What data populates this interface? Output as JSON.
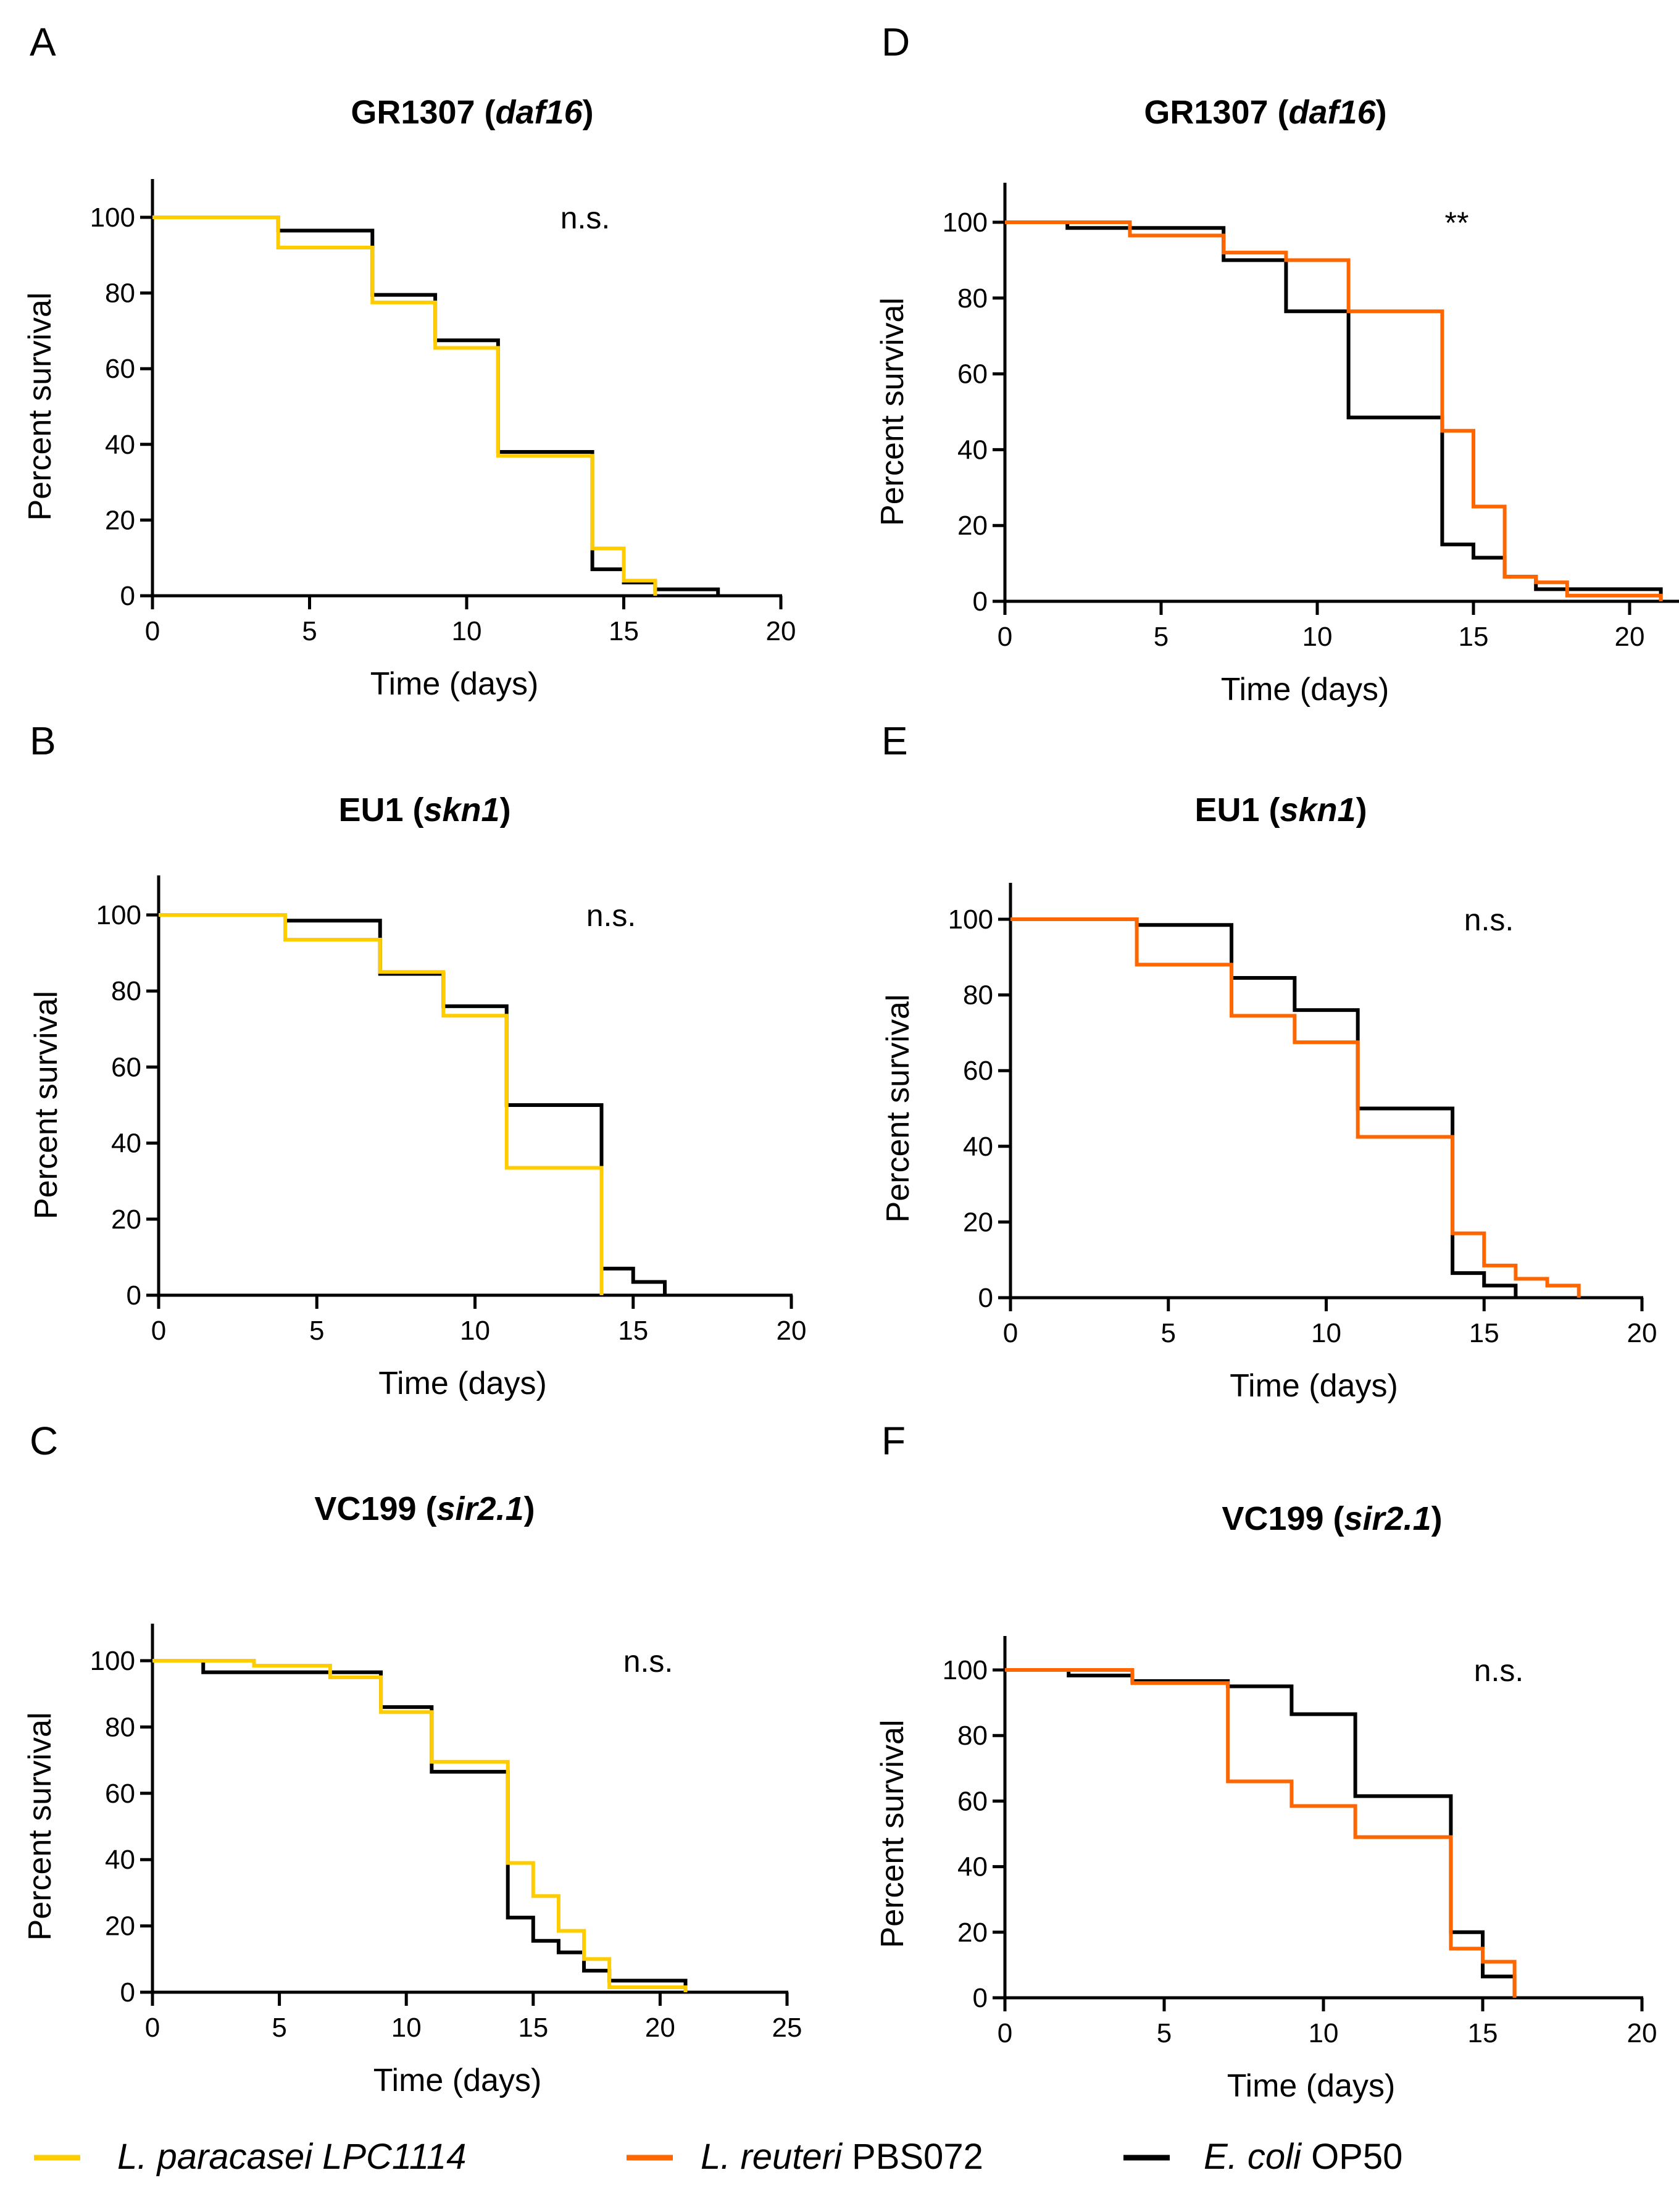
{
  "figure": {
    "legend": [
      {
        "name": "L. paracasei LPC1114",
        "italic_part": "L. paracasei LPC1114",
        "plain_part": "",
        "color": "#FFCC00"
      },
      {
        "name": "L. reuteri PBS072",
        "italic_part": "L. reuteri",
        "plain_part": " PBS072",
        "color": "#FF6600"
      },
      {
        "name": "E. coli OP50",
        "italic_part": "E. coli",
        "plain_part": " OP50",
        "color": "#000000"
      }
    ]
  },
  "chart_data": [
    {
      "panel": "A",
      "type": "line",
      "step": true,
      "title": "GR1307 (daf16)",
      "title_strain": "GR1307",
      "title_gene": "daf16",
      "xlabel": "Time (days)",
      "ylabel": "Percent survival",
      "xlim": [
        0,
        20
      ],
      "ylim": [
        0,
        110
      ],
      "xticks": [
        0,
        5,
        10,
        15,
        20
      ],
      "yticks": [
        0,
        20,
        40,
        60,
        80,
        100
      ],
      "annotation": "n.s.",
      "series": [
        {
          "name": "E. coli OP50",
          "color": "#000000",
          "x": [
            0,
            4,
            7,
            9,
            11,
            14,
            15,
            16,
            18
          ],
          "y": [
            100,
            96.5,
            79.5,
            67.5,
            38,
            7,
            3.5,
            1.7,
            0
          ]
        },
        {
          "name": "L. paracasei LPC1114",
          "color": "#FFCC00",
          "x": [
            0,
            4,
            7,
            9,
            11,
            14,
            15,
            16
          ],
          "y": [
            100,
            92,
            77.5,
            65.5,
            37,
            12.5,
            4,
            0
          ]
        }
      ]
    },
    {
      "panel": "B",
      "type": "line",
      "step": true,
      "title": "EU1 (skn1)",
      "title_strain": "EU1",
      "title_gene": "skn1",
      "xlabel": "Time (days)",
      "ylabel": "Percent survival",
      "xlim": [
        0,
        20
      ],
      "ylim": [
        0,
        110
      ],
      "xticks": [
        0,
        5,
        10,
        15,
        20
      ],
      "yticks": [
        0,
        20,
        40,
        60,
        80,
        100
      ],
      "annotation": "n.s.",
      "series": [
        {
          "name": "E. coli OP50",
          "color": "#000000",
          "x": [
            0,
            4,
            7,
            9,
            11,
            14,
            15,
            16
          ],
          "y": [
            100,
            98.5,
            84.5,
            76,
            50,
            7,
            3.5,
            0
          ]
        },
        {
          "name": "L. paracasei LPC1114",
          "color": "#FFCC00",
          "x": [
            0,
            4,
            7,
            9,
            11,
            14
          ],
          "y": [
            100,
            93.5,
            85,
            73.5,
            33.5,
            0
          ]
        }
      ]
    },
    {
      "panel": "C",
      "type": "line",
      "step": true,
      "title": "VC199 (sir2.1)",
      "title_strain": "VC199",
      "title_gene": "sir2.1",
      "xlabel": "Time (days)",
      "ylabel": "Percent survival",
      "xlim": [
        0,
        25
      ],
      "ylim": [
        0,
        110
      ],
      "xticks": [
        0,
        5,
        10,
        15,
        20,
        25
      ],
      "yticks": [
        0,
        20,
        40,
        60,
        80,
        100
      ],
      "annotation": "n.s.",
      "series": [
        {
          "name": "E. coli OP50",
          "color": "#000000",
          "x": [
            0,
            2,
            9,
            11,
            14,
            15,
            16,
            17,
            18,
            21
          ],
          "y": [
            100,
            96.5,
            86,
            66.5,
            22.5,
            15.5,
            12,
            6.5,
            3.5,
            0
          ]
        },
        {
          "name": "L. paracasei LPC1114",
          "color": "#FFCC00",
          "x": [
            0,
            4,
            7,
            9,
            11,
            14,
            15,
            16,
            17,
            18,
            21
          ],
          "y": [
            100,
            98.5,
            95,
            84.5,
            69.5,
            39,
            29,
            18.5,
            10,
            1.5,
            0
          ]
        }
      ]
    },
    {
      "panel": "D",
      "type": "line",
      "step": true,
      "title": "GR1307 (daf16)",
      "title_strain": "GR1307",
      "title_gene": "daf16",
      "xlabel": "Time (days)",
      "ylabel": "Percent survival",
      "xlim": [
        0,
        22
      ],
      "ylim": [
        0,
        110
      ],
      "xticks": [
        0,
        5,
        10,
        15,
        20
      ],
      "yticks": [
        0,
        20,
        40,
        60,
        80,
        100
      ],
      "annotation": "**",
      "series": [
        {
          "name": "E. coli OP50",
          "color": "#000000",
          "x": [
            0,
            2,
            7,
            9,
            11,
            14,
            15,
            16,
            17,
            21
          ],
          "y": [
            100,
            98.5,
            90,
            76.5,
            48.5,
            15,
            11.5,
            6.5,
            3.2,
            0
          ]
        },
        {
          "name": "L. reuteri PBS072",
          "color": "#FF6600",
          "x": [
            0,
            4,
            7,
            9,
            11,
            14,
            15,
            16,
            17,
            18,
            21
          ],
          "y": [
            100,
            96.5,
            92,
            90,
            76.5,
            45,
            25,
            6.5,
            5,
            1.5,
            0
          ]
        }
      ]
    },
    {
      "panel": "E",
      "type": "line",
      "step": true,
      "title": "EU1 (skn1)",
      "title_strain": "EU1",
      "title_gene": "skn1",
      "xlabel": "Time (days)",
      "ylabel": "Percent survival",
      "xlim": [
        0,
        20
      ],
      "ylim": [
        0,
        110
      ],
      "xticks": [
        0,
        5,
        10,
        15,
        20
      ],
      "yticks": [
        0,
        20,
        40,
        60,
        80,
        100
      ],
      "annotation": "n.s.",
      "series": [
        {
          "name": "E. coli OP50",
          "color": "#000000",
          "x": [
            0,
            4,
            7,
            9,
            11,
            14,
            15,
            16
          ],
          "y": [
            100,
            98.5,
            84.5,
            76,
            50,
            6.5,
            3.2,
            0
          ]
        },
        {
          "name": "L. reuteri PBS072",
          "color": "#FF6600",
          "x": [
            0,
            4,
            7,
            9,
            11,
            14,
            15,
            16,
            17,
            18
          ],
          "y": [
            100,
            88,
            74.5,
            67.5,
            42.5,
            17,
            8.5,
            5,
            3.2,
            0
          ]
        }
      ]
    },
    {
      "panel": "F",
      "type": "line",
      "step": true,
      "title": "VC199 (sir2.1)",
      "title_strain": "VC199",
      "title_gene": "sir2.1",
      "xlabel": "Time (days)",
      "ylabel": "Percent survival",
      "xlim": [
        0,
        20
      ],
      "ylim": [
        0,
        110
      ],
      "xticks": [
        0,
        5,
        10,
        15,
        20
      ],
      "yticks": [
        0,
        20,
        40,
        60,
        80,
        100
      ],
      "annotation": "n.s.",
      "series": [
        {
          "name": "E. coli OP50",
          "color": "#000000",
          "x": [
            0,
            2,
            4,
            7,
            9,
            11,
            14,
            15,
            16
          ],
          "y": [
            100,
            98.3,
            96.6,
            95,
            86.5,
            61.5,
            20,
            6.5,
            0
          ]
        },
        {
          "name": "L. reuteri PBS072",
          "color": "#FF6600",
          "x": [
            0,
            4,
            7,
            9,
            11,
            14,
            15,
            16
          ],
          "y": [
            100,
            96,
            66,
            58.5,
            49,
            15,
            11,
            0
          ]
        }
      ]
    }
  ]
}
